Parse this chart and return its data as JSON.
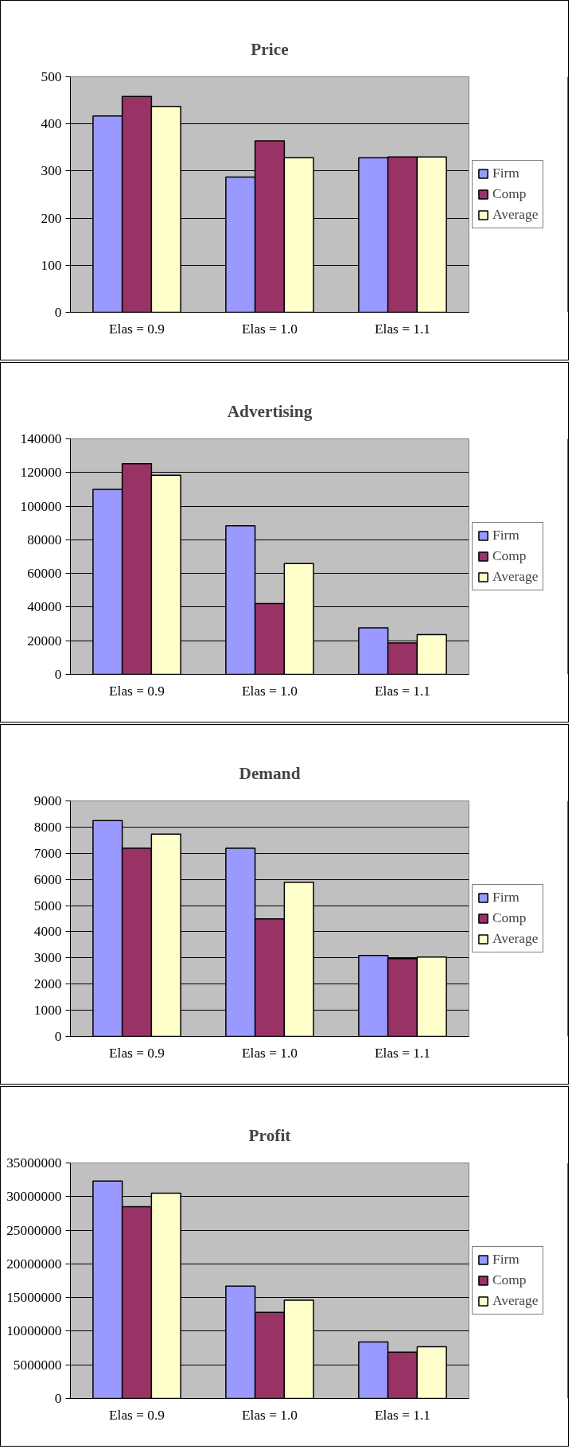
{
  "chart_data": [
    {
      "type": "bar",
      "title": "Price",
      "categories": [
        "Elas = 0.9",
        "Elas = 1.0",
        "Elas = 1.1"
      ],
      "ylim": [
        0,
        500
      ],
      "yticks": [
        0,
        100,
        200,
        300,
        400,
        500
      ],
      "grid": "y",
      "legend": "right",
      "series": [
        {
          "name": "Firm",
          "color": "#9999ff",
          "values": [
            417,
            287,
            328
          ]
        },
        {
          "name": "Comp",
          "color": "#993366",
          "values": [
            458,
            364,
            330
          ]
        },
        {
          "name": "Average",
          "color": "#ffffcc",
          "values": [
            437,
            328,
            330
          ]
        }
      ]
    },
    {
      "type": "bar",
      "title": "Advertising",
      "categories": [
        "Elas = 0.9",
        "Elas = 1.0",
        "Elas = 1.1"
      ],
      "ylim": [
        0,
        140000
      ],
      "yticks": [
        0,
        20000,
        40000,
        60000,
        80000,
        100000,
        120000,
        140000
      ],
      "grid": "y",
      "legend": "right",
      "series": [
        {
          "name": "Firm",
          "color": "#9999ff",
          "values": [
            110000,
            88300,
            27700
          ]
        },
        {
          "name": "Comp",
          "color": "#993366",
          "values": [
            125200,
            42100,
            18700
          ]
        },
        {
          "name": "Average",
          "color": "#ffffcc",
          "values": [
            118400,
            65900,
            23600
          ]
        }
      ]
    },
    {
      "type": "bar",
      "title": "Demand",
      "categories": [
        "Elas = 0.9",
        "Elas = 1.0",
        "Elas = 1.1"
      ],
      "ylim": [
        0,
        9000
      ],
      "yticks": [
        0,
        1000,
        2000,
        3000,
        4000,
        5000,
        6000,
        7000,
        8000,
        9000
      ],
      "grid": "y",
      "legend": "right",
      "series": [
        {
          "name": "Firm",
          "color": "#9999ff",
          "values": [
            8250,
            7190,
            3090
          ]
        },
        {
          "name": "Comp",
          "color": "#993366",
          "values": [
            7190,
            4490,
            2970
          ]
        },
        {
          "name": "Average",
          "color": "#ffffcc",
          "values": [
            7730,
            5890,
            3030
          ]
        }
      ]
    },
    {
      "type": "bar",
      "title": "Profit",
      "categories": [
        "Elas = 0.9",
        "Elas = 1.0",
        "Elas = 1.1"
      ],
      "ylim": [
        0,
        35000000
      ],
      "yticks": [
        0,
        5000000,
        10000000,
        15000000,
        20000000,
        25000000,
        30000000,
        35000000
      ],
      "grid": "y",
      "legend": "right",
      "series": [
        {
          "name": "Firm",
          "color": "#9999ff",
          "values": [
            32300000,
            16700000,
            8400000
          ]
        },
        {
          "name": "Comp",
          "color": "#993366",
          "values": [
            28500000,
            12800000,
            6900000
          ]
        },
        {
          "name": "Average",
          "color": "#ffffcc",
          "values": [
            30500000,
            14600000,
            7700000
          ]
        }
      ]
    }
  ]
}
